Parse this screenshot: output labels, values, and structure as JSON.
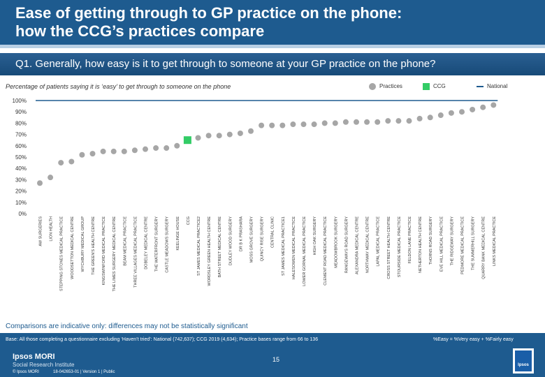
{
  "header": {
    "title_line1": "Ease of getting through to GP practice on the phone:",
    "title_line2": "how the CCG’s practices compare",
    "question": "Q1. Generally, how easy is it to get through to someone at your GP practice on the phone?"
  },
  "subtitle": "Percentage of patients saying it is ‘easy’ to get through to someone on the phone",
  "legend": [
    {
      "label": "Practices",
      "color": "#a6a6a6"
    },
    {
      "label": "CCG",
      "color": "#33cc66"
    },
    {
      "label": "National",
      "color": "#1e5b8f"
    }
  ],
  "chart_data": {
    "type": "scatter",
    "title": "",
    "ylabel": "",
    "ylim": [
      0,
      100
    ],
    "yticks": [
      "0%",
      "10%",
      "20%",
      "30%",
      "40%",
      "50%",
      "60%",
      "70%",
      "80%",
      "90%",
      "100%"
    ],
    "categories": [
      "AW SURGERIES",
      "LION HEALTH",
      "STEPPING STONES MEDICAL PRACTICE",
      "WOODSETTON MEDICAL CENTRE",
      "WYCHBURY MEDICAL GROUP",
      "THE GREEN'S HEALTH CENTRE",
      "KINGSWINFORD MEDICAL PRACTICE",
      "THE LIMES SURGERY MEDICAL CENTRE",
      "BEAM MEDICAL PRACTICE",
      "THREE VILLAGES MEDICAL PRACTICE",
      "DOBELEY MEDICAL CENTRE",
      "THE WATERFRONT SURGERY",
      "CASTLE MEADOWS SURGERY",
      "KEELINGE HOUSE",
      "CCG",
      "ST JAMES MEDICAL PRACTICE2",
      "WORDSLEY GREEN HEALTH CENTRE",
      "BATH STREET MEDICAL CENTRE",
      "DUDLEY WOOD SURGERY",
      "DR B K PRASHARA",
      "MOSS GROVE SURGERY",
      "QUINCY RISE SURGERY",
      "CENTRAL CLINIC",
      "ST JAMES MEDICAL PRACTICE1",
      "HALESOWEN MEDICAL PRACTICE",
      "LOWER GORNAL MEDICAL PRACTICE",
      "HIGH OAK SURGERY",
      "CLEMENT ROAD MEDICAL PRACTICE",
      "MEADOWBROOK SURGERY",
      "RANGEWAYS ROAD SURGERY",
      "ALEXANDRA MEDICAL CENTRE",
      "NORTHWAY MEDICAL CENTRE",
      "LAPAL MEDICAL PRACTICE",
      "CROSS STREET HEALTH CENTRE",
      "STOURSIDE MEDICAL PRACTICE",
      "FELDON LANE PRACTICE",
      "NETHERTON HEALTH CENTRE",
      "THORNS ROAD SURGERY",
      "EVE HILL MEDICAL PRACTICE",
      "THE RIDGEWAY SURGERY",
      "PEDMORE MEDICAL PRACTICE",
      "THE SUMMERHILL SURGERY",
      "QUARRY BANK MEDICAL CENTRE",
      "LINKS MEDICAL PRACTICE"
    ],
    "values": [
      27,
      32,
      45,
      46,
      52,
      53,
      55,
      55,
      55,
      56,
      57,
      58,
      58,
      60,
      65,
      67,
      69,
      69,
      70,
      71,
      73,
      78,
      78,
      78,
      79,
      79,
      79,
      80,
      80,
      81,
      81,
      81,
      81,
      82,
      82,
      82,
      84,
      85,
      87,
      89,
      90,
      92,
      94,
      96
    ],
    "ccg_index": 14,
    "series": [
      {
        "name": "Practices",
        "color": "#a6a6a6"
      },
      {
        "name": "CCG",
        "color": "#33cc66"
      },
      {
        "name": "National",
        "color": "#1e5b8f"
      }
    ]
  },
  "note": "Comparisons are indicative only: differences may not be statistically significant",
  "footer": {
    "base": "Base: All those completing a questionnaire excluding ‘Haven’t tried’: National (742,637); CCG 2019 (4,634); Practice bases range from 66 to 136",
    "easy_def": "%Easy = %Very easy + %Fairly easy",
    "brand": "Ipsos MORI",
    "institute": "Social Research Institute",
    "copyright": "© Ipsos MORI",
    "job": "18-042653-01 | Version 1 | Public",
    "page": "15",
    "logo_text": "Ipsos"
  }
}
